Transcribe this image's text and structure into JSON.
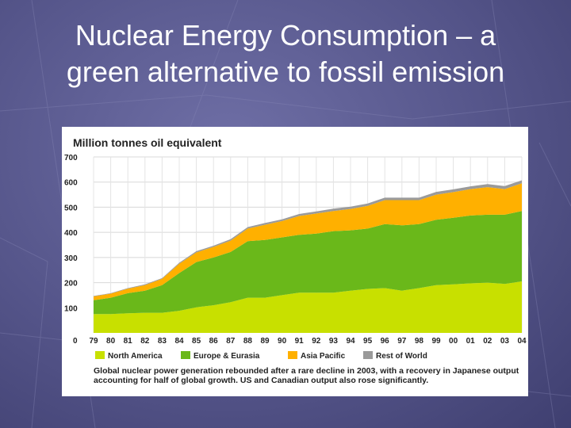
{
  "slide": {
    "title_line1": "Nuclear Energy Consumption – a",
    "title_line2": "green alternative to fossil emission"
  },
  "colors": {
    "north_america": "#c8e000",
    "europe_eurasia": "#6ab81a",
    "asia_pacific": "#ffb000",
    "rest_of_world": "#9a9a9a"
  },
  "chart_data": {
    "type": "area",
    "stacked": true,
    "title": "Million tonnes oil equivalent",
    "x": [
      "79",
      "80",
      "81",
      "82",
      "83",
      "84",
      "85",
      "86",
      "87",
      "88",
      "89",
      "90",
      "91",
      "92",
      "93",
      "94",
      "95",
      "96",
      "97",
      "98",
      "99",
      "00",
      "01",
      "02",
      "03",
      "04"
    ],
    "x_zero_label": "0",
    "ylim": [
      0,
      700
    ],
    "yticks": [
      "100",
      "200",
      "300",
      "400",
      "500",
      "600",
      "700"
    ],
    "ytick_values": [
      100,
      200,
      300,
      400,
      500,
      600,
      700
    ],
    "grid": true,
    "series": [
      {
        "name": "North America",
        "color": "#c8e000",
        "values": [
          75,
          75,
          78,
          80,
          80,
          88,
          102,
          110,
          122,
          140,
          140,
          150,
          160,
          160,
          160,
          168,
          175,
          178,
          168,
          178,
          190,
          193,
          197,
          200,
          195,
          205
        ]
      },
      {
        "name": "Europe & Eurasia",
        "color": "#6ab81a",
        "values": [
          55,
          65,
          80,
          88,
          110,
          150,
          180,
          190,
          200,
          225,
          230,
          230,
          230,
          235,
          245,
          240,
          240,
          255,
          260,
          255,
          260,
          265,
          270,
          270,
          275,
          280
        ]
      },
      {
        "name": "Asia Pacific",
        "color": "#ffb000",
        "values": [
          15,
          16,
          18,
          22,
          25,
          37,
          38,
          42,
          45,
          50,
          60,
          65,
          75,
          80,
          80,
          85,
          90,
          95,
          100,
          95,
          100,
          102,
          105,
          110,
          102,
          110
        ]
      },
      {
        "name": "Rest of World",
        "color": "#9a9a9a",
        "values": [
          2,
          2,
          2,
          3,
          3,
          4,
          5,
          5,
          6,
          6,
          7,
          7,
          8,
          8,
          9,
          9,
          10,
          10,
          10,
          10,
          11,
          11,
          11,
          12,
          12,
          12
        ]
      }
    ],
    "legend": [
      "North America",
      "Europe & Eurasia",
      "Asia Pacific",
      "Rest of World"
    ],
    "legend_position": "bottom",
    "caption": "Global nuclear power generation rebounded after a rare decline in 2003, with a recovery in Japanese output accounting for half of global growth. US and Canadian output also rose significantly."
  }
}
